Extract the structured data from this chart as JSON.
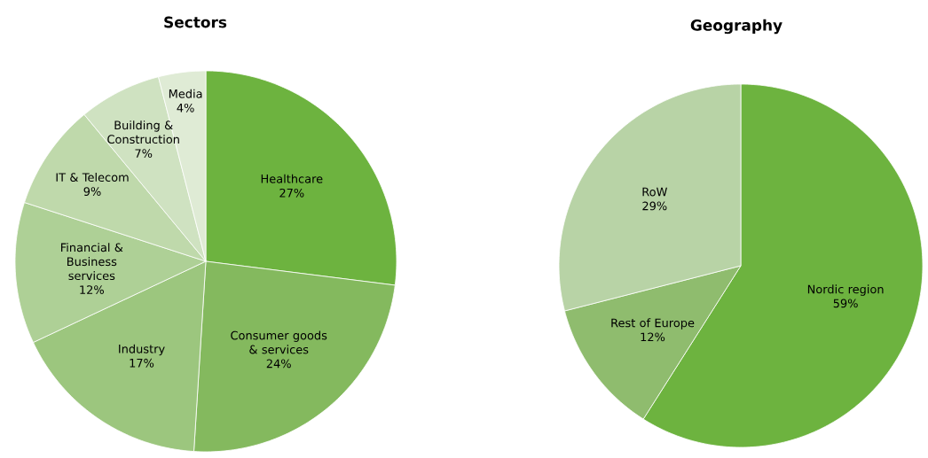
{
  "chart_data": [
    {
      "type": "pie",
      "title": "Sectors",
      "categories": [
        "Healthcare",
        "Consumer goods & services",
        "Industry",
        "Financial & Business services",
        "IT & Telecom",
        "Building & Construction",
        "Media"
      ],
      "values": [
        27,
        24,
        17,
        12,
        9,
        7,
        4
      ],
      "value_labels": [
        "27%",
        "24%",
        "17%",
        "12%",
        "9%",
        "7%",
        "4%"
      ],
      "colors": [
        "#6db33f",
        "#84b95e",
        "#9cc67e",
        "#aed096",
        "#bfd9ab",
        "#cfe2c1",
        "#dfebd5"
      ]
    },
    {
      "type": "pie",
      "title": "Geography",
      "categories": [
        "Nordic region",
        "Rest of Europe",
        "RoW"
      ],
      "values": [
        59,
        12,
        29
      ],
      "value_labels": [
        "59%",
        "12%",
        "29%"
      ],
      "colors": [
        "#6db33f",
        "#8fbc6e",
        "#b8d3a6"
      ]
    }
  ]
}
